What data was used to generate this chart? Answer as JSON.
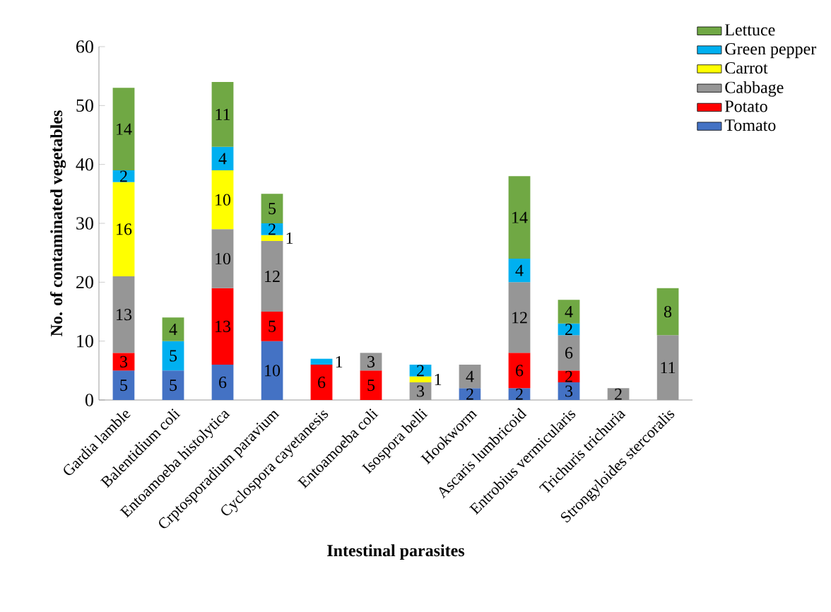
{
  "chart_data": {
    "type": "bar",
    "stacked": true,
    "data_labels": true,
    "legend": "right",
    "grid": false,
    "xlabel": "Intestinal parasites",
    "ylabel": "No. of contaminated vegetables",
    "categories": [
      "Gardia lamble",
      "Balentidium coli",
      "Entoamoeba histolytica",
      "Crptosporadium paravium",
      "Cyclospora cayetanesis",
      "Entoamoeba coli",
      "Isospora belli",
      "Hookworm",
      "Ascaris lumbricoid",
      "Entrobius vermicularis",
      "Trichuris trichuria",
      "Strongyloides stercoralis"
    ],
    "ylim": [
      0,
      60
    ],
    "yticks": [
      0,
      10,
      20,
      30,
      40,
      50,
      60
    ],
    "series": [
      {
        "name": "Tomato",
        "color": "#4472c4",
        "values": [
          5,
          5,
          6,
          10,
          null,
          null,
          null,
          2,
          2,
          3,
          null,
          null
        ]
      },
      {
        "name": "Potato",
        "color": "#ff0000",
        "values": [
          3,
          null,
          13,
          5,
          6,
          5,
          null,
          null,
          6,
          2,
          null,
          null
        ]
      },
      {
        "name": "Cabbage",
        "color": "#969696",
        "values": [
          13,
          null,
          10,
          12,
          null,
          3,
          3,
          4,
          12,
          6,
          2,
          11
        ]
      },
      {
        "name": "Carrot",
        "color": "#ffff00",
        "values": [
          16,
          null,
          10,
          1,
          null,
          null,
          1,
          null,
          null,
          null,
          null,
          null
        ]
      },
      {
        "name": "Green pepper",
        "color": "#00b0f0",
        "values": [
          2,
          5,
          4,
          2,
          1,
          null,
          2,
          null,
          4,
          2,
          null,
          null
        ]
      },
      {
        "name": "Lettuce",
        "color": "#70a844",
        "values": [
          14,
          4,
          11,
          5,
          null,
          null,
          null,
          null,
          14,
          4,
          null,
          8
        ]
      }
    ]
  }
}
